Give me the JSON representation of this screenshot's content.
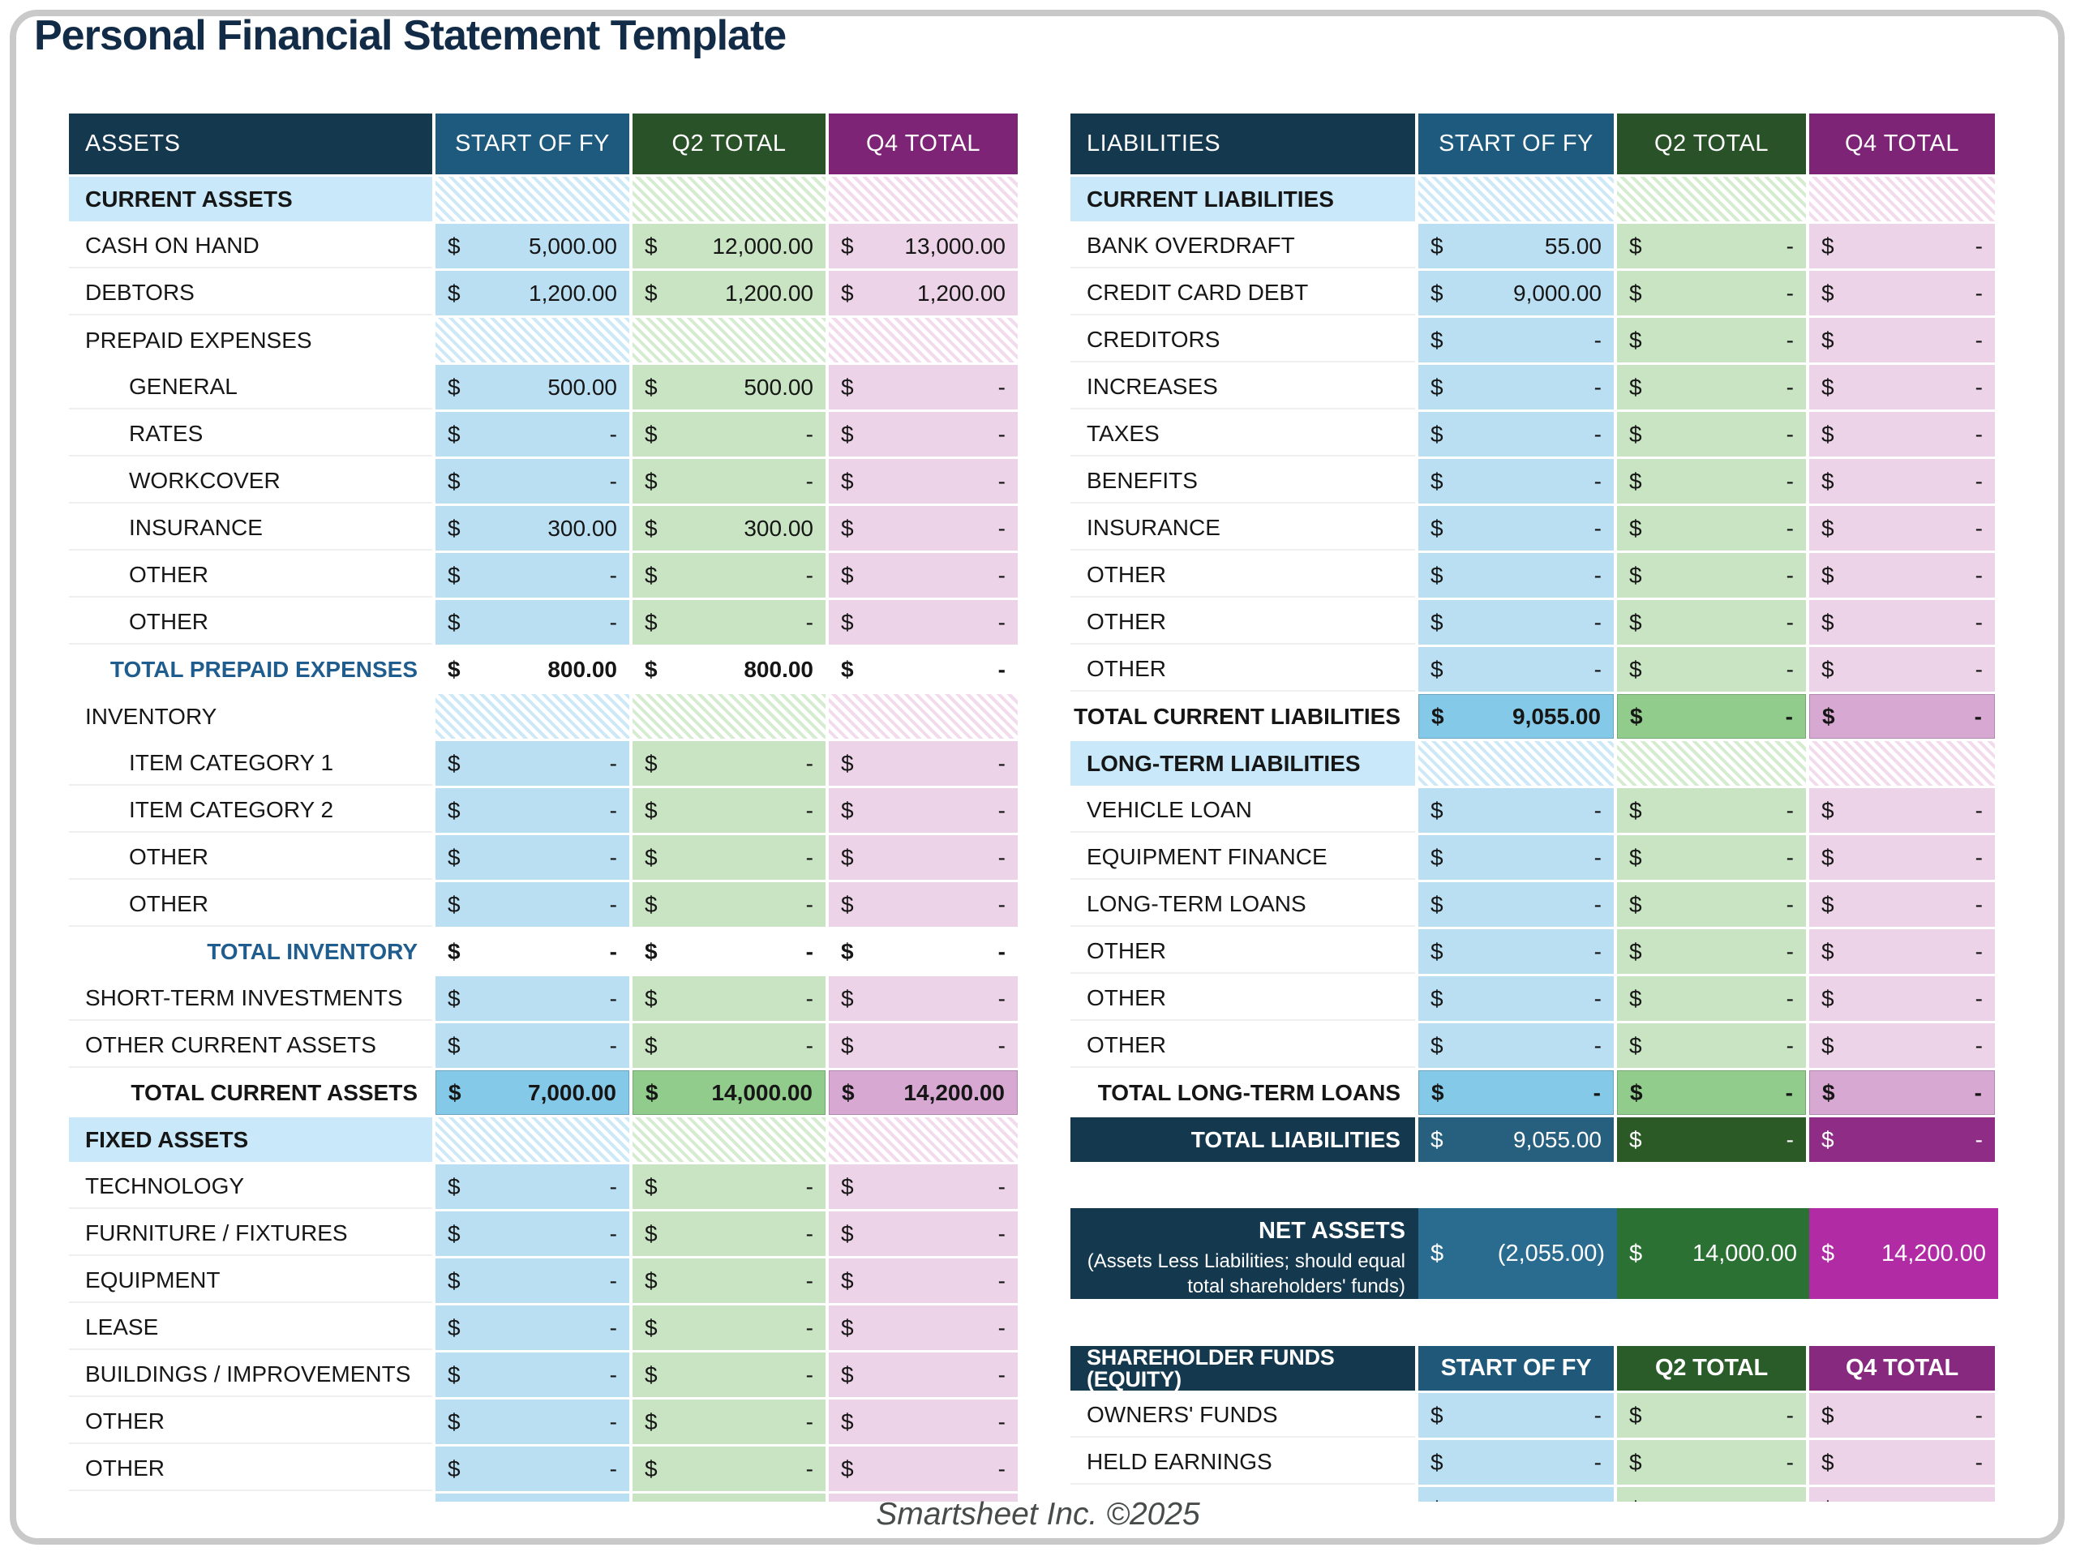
{
  "page": {
    "title": "Personal Financial Statement Template",
    "footer": "Smartsheet Inc. ©2025"
  },
  "colors": {
    "header_navy": "#14384e",
    "header_blue": "#1d5a7d",
    "header_green": "#2a5228",
    "header_purple": "#7e2476",
    "cell_blue": "#badff2",
    "cell_green": "#c8e4c3",
    "cell_pink": "#edd3e7",
    "total_blue": "#85c9e8",
    "total_green": "#92cc8d",
    "total_pink": "#d7a8d2",
    "grand_blue": "#27607f",
    "grand_green": "#2c5a26",
    "grand_purple": "#8e2c86",
    "net_blue": "#2a6b90",
    "net_green": "#2b7134",
    "net_magenta": "#b12ba4",
    "section_label_blue": "#c9e9fa",
    "subtotal_label_navy": "#1f5d8f",
    "title_navy": "#122b47"
  },
  "currency_symbol": "$",
  "assets_table": {
    "headers": [
      "ASSETS",
      "START OF FY",
      "Q2 TOTAL",
      "Q4 TOTAL"
    ],
    "rows": [
      {
        "type": "section",
        "label": "CURRENT ASSETS"
      },
      {
        "type": "data",
        "label": "CASH ON HAND",
        "values": [
          "5,000.00",
          "12,000.00",
          "13,000.00"
        ]
      },
      {
        "type": "data",
        "label": "DEBTORS",
        "values": [
          "1,200.00",
          "1,200.00",
          "1,200.00"
        ]
      },
      {
        "type": "subsection",
        "label": "PREPAID EXPENSES"
      },
      {
        "type": "data",
        "indent": true,
        "label": "GENERAL",
        "values": [
          "500.00",
          "500.00",
          "-"
        ]
      },
      {
        "type": "data",
        "indent": true,
        "label": "RATES",
        "values": [
          "-",
          "-",
          "-"
        ]
      },
      {
        "type": "data",
        "indent": true,
        "label": "WORKCOVER",
        "values": [
          "-",
          "-",
          "-"
        ]
      },
      {
        "type": "data",
        "indent": true,
        "label": "INSURANCE",
        "values": [
          "300.00",
          "300.00",
          "-"
        ]
      },
      {
        "type": "data",
        "indent": true,
        "label": "OTHER",
        "values": [
          "-",
          "-",
          "-"
        ]
      },
      {
        "type": "data",
        "indent": true,
        "label": "OTHER",
        "values": [
          "-",
          "-",
          "-"
        ]
      },
      {
        "type": "subtotal",
        "label": "TOTAL PREPAID EXPENSES",
        "values": [
          "800.00",
          "800.00",
          "-"
        ]
      },
      {
        "type": "subsection",
        "label": "INVENTORY"
      },
      {
        "type": "data",
        "indent": true,
        "label": "ITEM CATEGORY 1",
        "values": [
          "-",
          "-",
          "-"
        ]
      },
      {
        "type": "data",
        "indent": true,
        "label": "ITEM CATEGORY 2",
        "values": [
          "-",
          "-",
          "-"
        ]
      },
      {
        "type": "data",
        "indent": true,
        "label": "OTHER",
        "values": [
          "-",
          "-",
          "-"
        ]
      },
      {
        "type": "data",
        "indent": true,
        "label": "OTHER",
        "values": [
          "-",
          "-",
          "-"
        ]
      },
      {
        "type": "subtotal",
        "label": "TOTAL INVENTORY",
        "values": [
          "-",
          "-",
          "-"
        ]
      },
      {
        "type": "data",
        "label": "SHORT-TERM INVESTMENTS",
        "values": [
          "-",
          "-",
          "-"
        ]
      },
      {
        "type": "data",
        "label": "OTHER CURRENT ASSETS",
        "values": [
          "-",
          "-",
          "-"
        ]
      },
      {
        "type": "total",
        "label": "TOTAL CURRENT ASSETS",
        "values": [
          "7,000.00",
          "14,000.00",
          "14,200.00"
        ]
      },
      {
        "type": "section",
        "label": "FIXED ASSETS"
      },
      {
        "type": "data",
        "label": "TECHNOLOGY",
        "values": [
          "-",
          "-",
          "-"
        ]
      },
      {
        "type": "data",
        "label": "FURNITURE / FIXTURES",
        "values": [
          "-",
          "-",
          "-"
        ]
      },
      {
        "type": "data",
        "label": "EQUIPMENT",
        "values": [
          "-",
          "-",
          "-"
        ]
      },
      {
        "type": "data",
        "label": "LEASE",
        "values": [
          "-",
          "-",
          "-"
        ]
      },
      {
        "type": "data",
        "label": "BUILDINGS / IMPROVEMENTS",
        "values": [
          "-",
          "-",
          "-"
        ]
      },
      {
        "type": "data",
        "label": "OTHER",
        "values": [
          "-",
          "-",
          "-"
        ]
      },
      {
        "type": "data",
        "label": "OTHER",
        "values": [
          "-",
          "-",
          "-"
        ]
      },
      {
        "type": "data",
        "label": "",
        "values": [
          "-",
          "-",
          "-"
        ]
      }
    ]
  },
  "liabilities_table": {
    "headers": [
      "LIABILITIES",
      "START OF FY",
      "Q2 TOTAL",
      "Q4 TOTAL"
    ],
    "rows": [
      {
        "type": "section",
        "label": "CURRENT LIABILITIES"
      },
      {
        "type": "data",
        "label": "BANK OVERDRAFT",
        "values": [
          "55.00",
          "-",
          "-"
        ]
      },
      {
        "type": "data",
        "label": "CREDIT CARD DEBT",
        "values": [
          "9,000.00",
          "-",
          "-"
        ]
      },
      {
        "type": "data",
        "label": "CREDITORS",
        "values": [
          "-",
          "-",
          "-"
        ]
      },
      {
        "type": "data",
        "label": "INCREASES",
        "values": [
          "-",
          "-",
          "-"
        ]
      },
      {
        "type": "data",
        "label": "TAXES",
        "values": [
          "-",
          "-",
          "-"
        ]
      },
      {
        "type": "data",
        "label": "BENEFITS",
        "values": [
          "-",
          "-",
          "-"
        ]
      },
      {
        "type": "data",
        "label": "INSURANCE",
        "values": [
          "-",
          "-",
          "-"
        ]
      },
      {
        "type": "data",
        "label": "OTHER",
        "values": [
          "-",
          "-",
          "-"
        ]
      },
      {
        "type": "data",
        "label": "OTHER",
        "values": [
          "-",
          "-",
          "-"
        ]
      },
      {
        "type": "data",
        "label": "OTHER",
        "values": [
          "-",
          "-",
          "-"
        ]
      },
      {
        "type": "total",
        "label": "TOTAL CURRENT LIABILITIES",
        "values": [
          "9,055.00",
          "-",
          "-"
        ]
      },
      {
        "type": "section",
        "label": "LONG-TERM LIABILITIES"
      },
      {
        "type": "data",
        "label": "VEHICLE LOAN",
        "values": [
          "-",
          "-",
          "-"
        ]
      },
      {
        "type": "data",
        "label": "EQUIPMENT FINANCE",
        "values": [
          "-",
          "-",
          "-"
        ]
      },
      {
        "type": "data",
        "label": "LONG-TERM LOANS",
        "values": [
          "-",
          "-",
          "-"
        ]
      },
      {
        "type": "data",
        "label": "OTHER",
        "values": [
          "-",
          "-",
          "-"
        ]
      },
      {
        "type": "data",
        "label": "OTHER",
        "values": [
          "-",
          "-",
          "-"
        ]
      },
      {
        "type": "data",
        "label": "OTHER",
        "values": [
          "-",
          "-",
          "-"
        ]
      },
      {
        "type": "total",
        "label": "TOTAL LONG-TERM LOANS",
        "values": [
          "-",
          "-",
          "-"
        ]
      },
      {
        "type": "grandtotal",
        "label": "TOTAL LIABILITIES",
        "values": [
          "9,055.00",
          "-",
          "-"
        ]
      }
    ]
  },
  "net_assets": {
    "title": "NET ASSETS",
    "subtitle": "(Assets Less Liabilities; should equal total shareholders' funds)",
    "values": [
      "(2,055.00)",
      "14,000.00",
      "14,200.00"
    ]
  },
  "equity_table": {
    "headers": [
      "SHAREHOLDER FUNDS (EQUITY)",
      "START OF FY",
      "Q2 TOTAL",
      "Q4 TOTAL"
    ],
    "rows": [
      {
        "type": "data",
        "label": "OWNERS' FUNDS",
        "values": [
          "-",
          "-",
          "-"
        ]
      },
      {
        "type": "data",
        "label": "HELD EARNINGS",
        "values": [
          "-",
          "-",
          "-"
        ]
      },
      {
        "type": "data",
        "label": "",
        "values": [
          "-",
          "-",
          "-"
        ]
      }
    ]
  }
}
